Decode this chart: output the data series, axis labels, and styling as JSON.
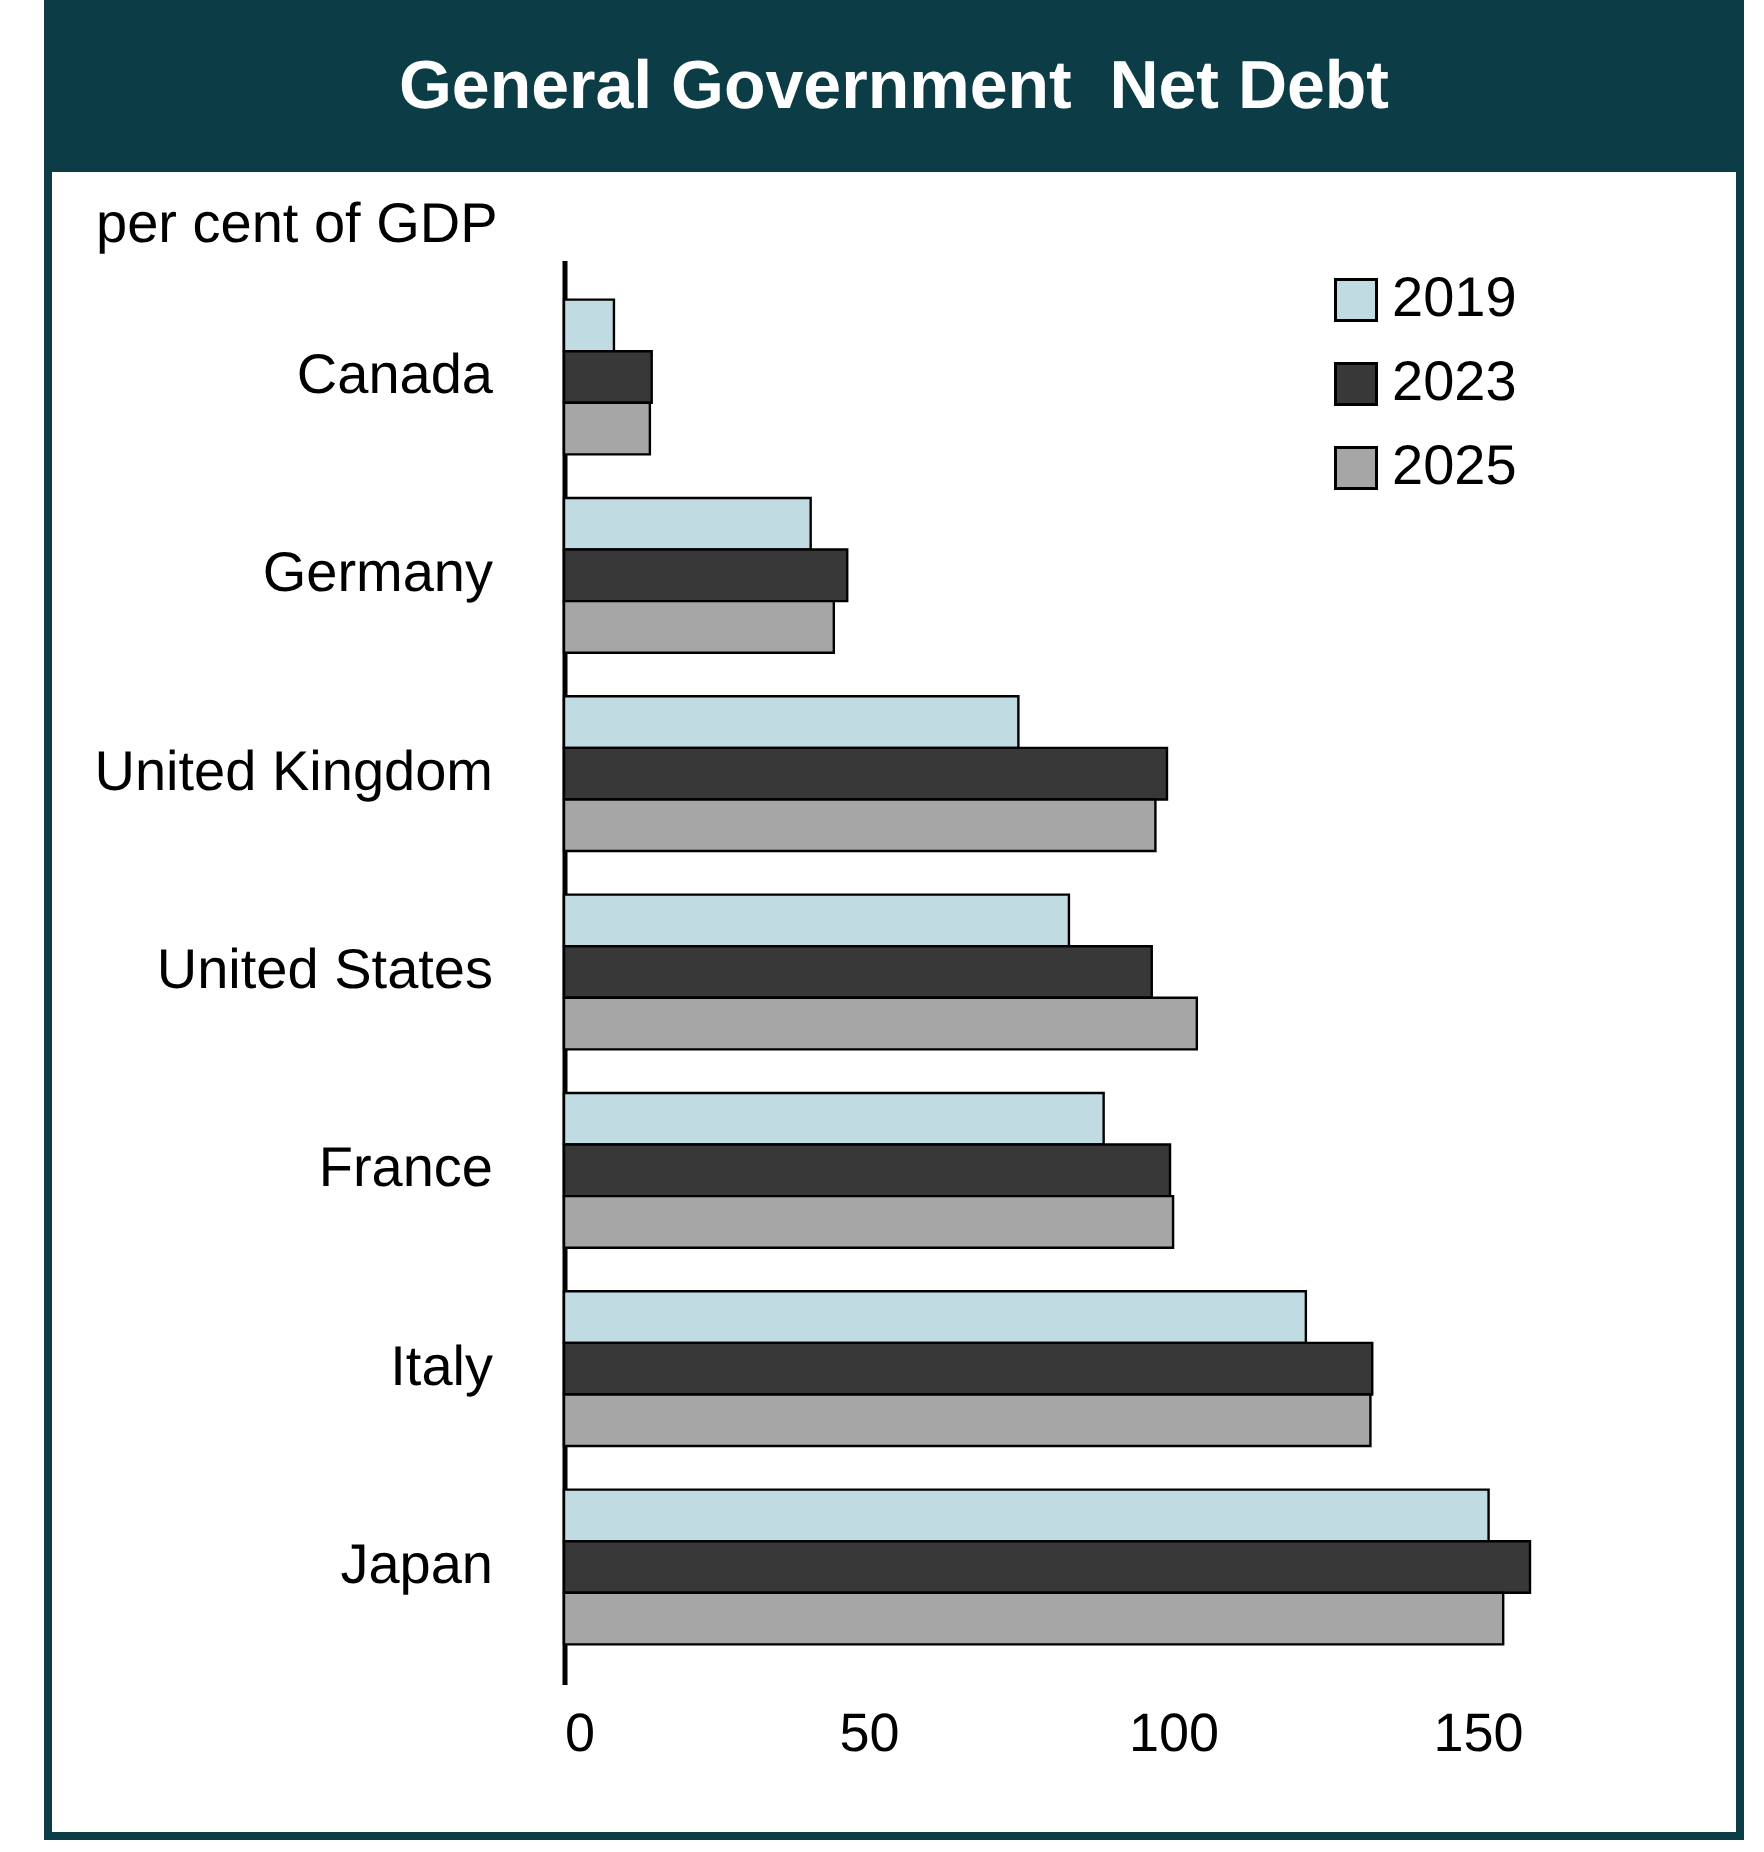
{
  "chart_data": {
    "type": "bar",
    "orientation": "horizontal",
    "title": "General Government  Net Debt",
    "annotations": [
      "per cent of GDP"
    ],
    "categories": [
      "Canada",
      "Germany",
      "United Kingdom",
      "United States",
      "France",
      "Italy",
      "Japan"
    ],
    "series": [
      {
        "name": "2019",
        "color": "#c1dbe3",
        "values": [
          8.2,
          40.5,
          74.6,
          82.9,
          88.6,
          121.8,
          151.8
        ]
      },
      {
        "name": "2023",
        "color": "#383838",
        "values": [
          14.4,
          46.5,
          99.0,
          96.5,
          99.5,
          132.7,
          158.6
        ]
      },
      {
        "name": "2025",
        "color": "#a6a6a6",
        "values": [
          14.1,
          44.3,
          97.1,
          103.9,
          100.0,
          132.4,
          154.2
        ]
      }
    ],
    "xlim": [
      0,
      158.6
    ],
    "xticks": [
      0,
      50,
      100,
      150
    ],
    "legend": "top right",
    "grid": false
  }
}
